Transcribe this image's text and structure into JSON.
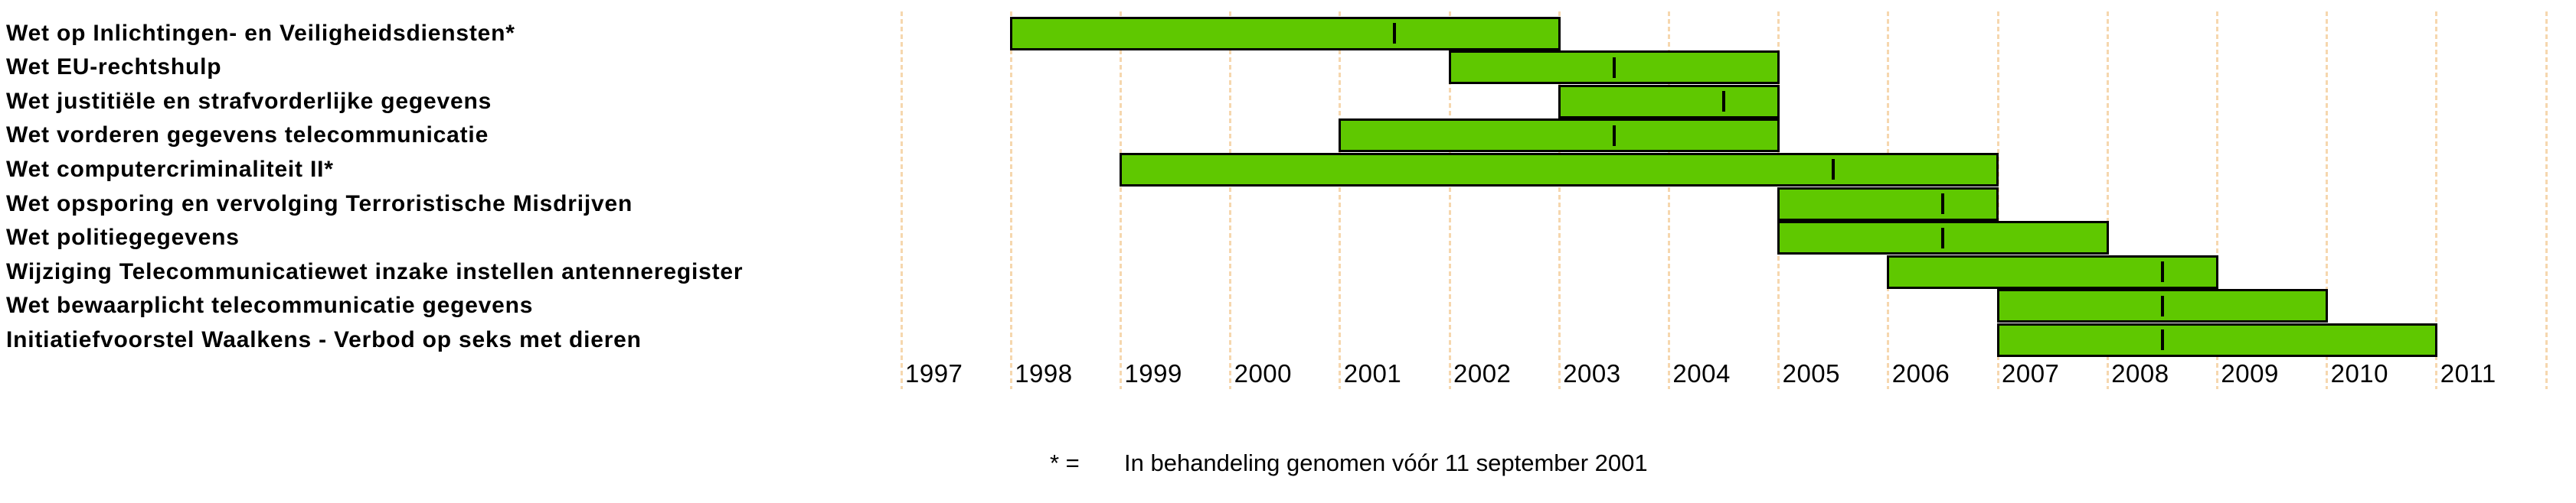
{
  "chart_data": {
    "type": "bar",
    "variant": "gantt-timeline",
    "title": "",
    "xlabel": "",
    "ylabel": "",
    "x_axis": {
      "unit": "year",
      "range": [
        1996.9,
        2012.3
      ],
      "gridline_years": [
        1997,
        1998,
        1999,
        2000,
        2001,
        2002,
        2003,
        2004,
        2005,
        2006,
        2007,
        2008,
        2009,
        2010,
        2011,
        2012
      ],
      "tick_labels": [
        "1997",
        "1998",
        "1999",
        "2000",
        "2001",
        "2002",
        "2003",
        "2004",
        "2005",
        "2006",
        "2007",
        "2008",
        "2009",
        "2010",
        "2011"
      ],
      "gridline_style": "dashed"
    },
    "rows": [
      {
        "label": "Wet op Inlichtingen- en Veiligheidsdiensten*",
        "start": 1998,
        "end": 2003,
        "marker": 2001.5
      },
      {
        "label": "Wet EU-rechtshulp",
        "start": 2002,
        "end": 2005,
        "marker": 2003.5
      },
      {
        "label": "Wet justitiële en strafvorderlijke gegevens",
        "start": 2003,
        "end": 2005,
        "marker": 2004.5
      },
      {
        "label": "Wet vorderen gegevens telecommunicatie",
        "start": 2001,
        "end": 2005,
        "marker": 2003.5
      },
      {
        "label": "Wet computercriminaliteit II*",
        "start": 1999,
        "end": 2007,
        "marker": 2005.5
      },
      {
        "label": "Wet opsporing en vervolging Terroristische Misdrijven",
        "start": 2005,
        "end": 2007,
        "marker": 2006.5
      },
      {
        "label": "Wet politiegegevens",
        "start": 2005,
        "end": 2008,
        "marker": 2006.5
      },
      {
        "label": "Wijziging Telecommunicatiewet inzake instellen antenneregister",
        "start": 2006,
        "end": 2009,
        "marker": 2008.5
      },
      {
        "label": "Wet bewaarplicht telecommunicatie gegevens",
        "start": 2007,
        "end": 2010,
        "marker": 2008.5
      },
      {
        "label": "Initiatiefvoorstel Waalkens - Verbod op seks met dieren",
        "start": 2007,
        "end": 2011,
        "marker": 2008.5
      }
    ],
    "footnote": {
      "symbol": "* =",
      "text": "In behandeling genomen vóór 11 september 2001"
    },
    "colors": {
      "bar_fill": "#5fc800",
      "bar_border": "#000000",
      "marker": "#000000",
      "gridline": "#f6d7ae",
      "text": "#000000",
      "background": "#ffffff"
    },
    "legend": {
      "visible": false
    }
  }
}
